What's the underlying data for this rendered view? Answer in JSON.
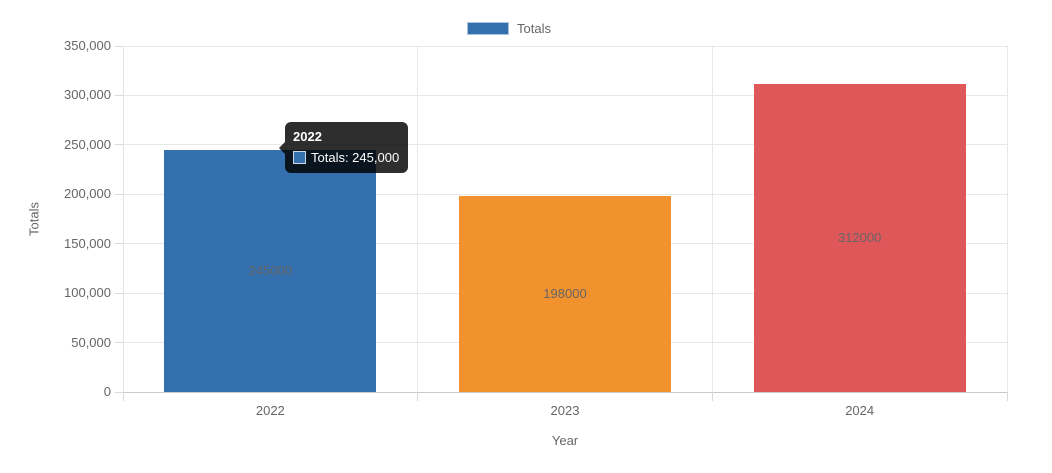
{
  "chart_data": {
    "type": "bar",
    "categories": [
      "2022",
      "2023",
      "2024"
    ],
    "series": [
      {
        "name": "Totals",
        "values": [
          245000,
          198000,
          312000
        ]
      }
    ],
    "bar_colors": [
      "#3470ad",
      "#f2922e",
      "#e0575a"
    ],
    "bar_value_labels": [
      "245000",
      "198000",
      "312000"
    ],
    "title": "",
    "xlabel": "Year",
    "ylabel": "Totals",
    "ylim": [
      0,
      350000
    ],
    "ytick_step": 50000,
    "ytick_labels": [
      "0",
      "50,000",
      "100,000",
      "150,000",
      "200,000",
      "250,000",
      "300,000",
      "350,000"
    ],
    "grid": true,
    "legend_position": "top"
  },
  "legend": {
    "items": [
      {
        "label": "Totals",
        "color": "#3470ad",
        "border_color": "#a8c4de"
      }
    ]
  },
  "tooltip": {
    "title": "2022",
    "rows": [
      {
        "label": "Totals: 245,000",
        "swatch_color": "#3470ad",
        "swatch_border": "#ccd8e6"
      }
    ],
    "background": "rgba(0,0,0,0.82)"
  },
  "colors": {
    "grid": "#e8e8e8",
    "axis_line": "#c9c9c9",
    "y_axis_line": "#e3e3e3",
    "tick_mark": "#d9d9d9",
    "tick_label": "#666666",
    "bar_label": "#666666",
    "axis_title": "#666666",
    "legend_label": "#666666"
  }
}
